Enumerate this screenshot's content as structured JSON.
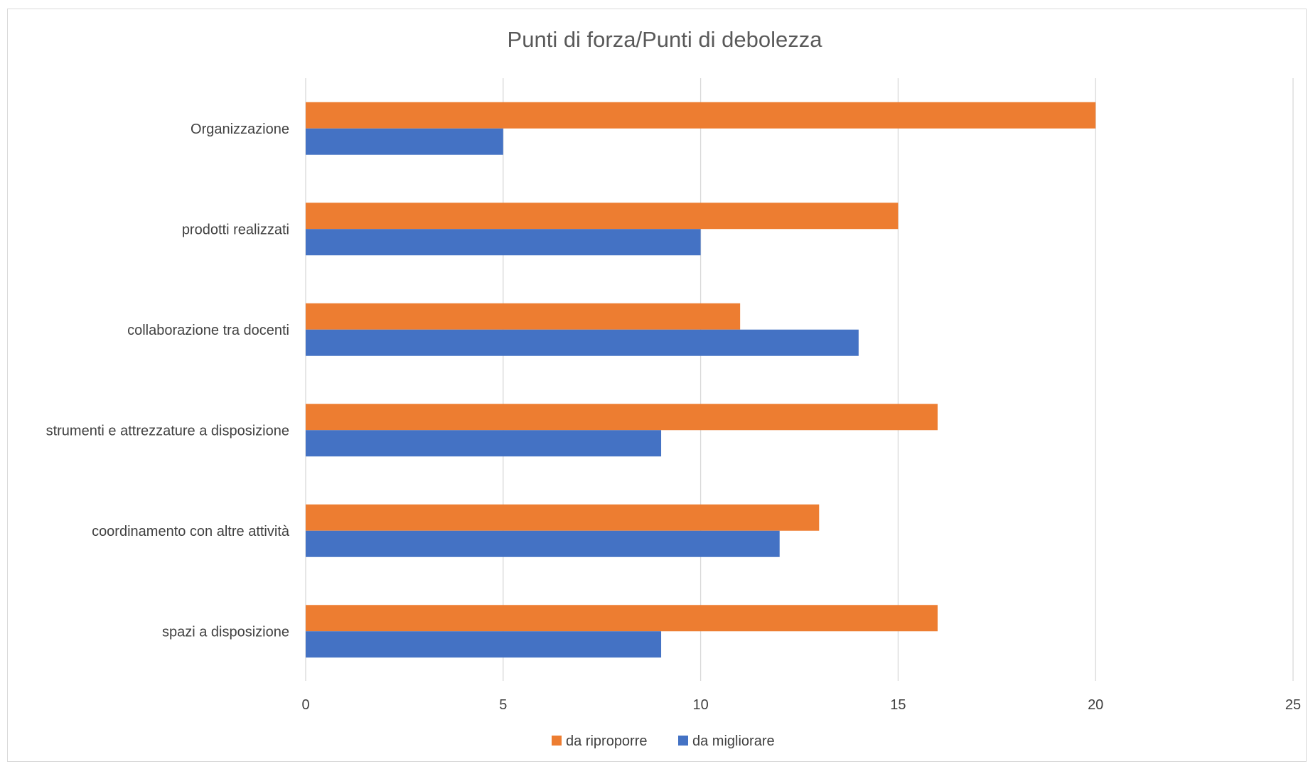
{
  "chart_data": {
    "type": "bar",
    "orientation": "horizontal",
    "title": "Punti di forza/Punti di debolezza",
    "xlabel": "",
    "ylabel": "",
    "categories": [
      "Organizzazione",
      "prodotti realizzati",
      "collaborazione tra docenti",
      "strumenti e attrezzature a disposizione",
      "coordinamento con altre attività",
      "spazi a disposizione"
    ],
    "series": [
      {
        "name": "da riproporre",
        "color": "#ED7D31",
        "values": [
          20,
          15,
          11,
          16,
          13,
          16
        ]
      },
      {
        "name": "da migliorare",
        "color": "#4472C4",
        "values": [
          5,
          10,
          14,
          9,
          12,
          9
        ]
      }
    ],
    "xlim": [
      0,
      25
    ],
    "xticks": [
      0,
      5,
      10,
      15,
      20,
      25
    ],
    "grid": "vertical",
    "legend_position": "bottom"
  }
}
